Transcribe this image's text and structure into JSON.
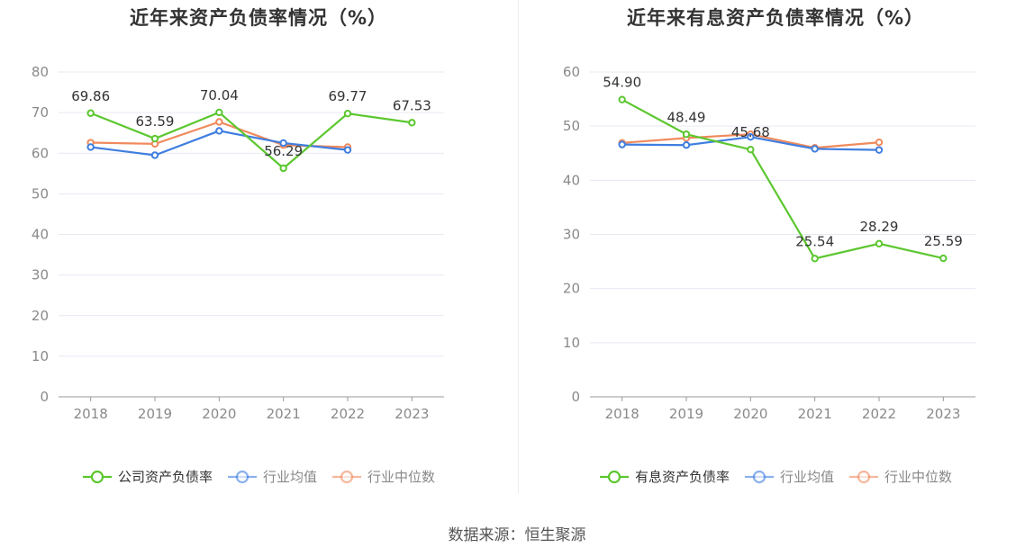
{
  "source": "数据来源：恒生聚源",
  "chart_data": [
    {
      "type": "line",
      "title": "近年来资产负债率情况（%）",
      "categories": [
        "2018",
        "2019",
        "2020",
        "2021",
        "2022",
        "2023"
      ],
      "ylim": [
        0,
        80
      ],
      "yticks": [
        0,
        10,
        20,
        30,
        40,
        50,
        60,
        70,
        80
      ],
      "grid": true,
      "legend_position": "bottom",
      "series": [
        {
          "name": "公司资产负债率",
          "color": "#5cc72f",
          "values": [
            69.86,
            63.59,
            70.04,
            56.29,
            69.77,
            67.53
          ],
          "show_labels": true
        },
        {
          "name": "行业均值",
          "color": "#3f7ee0",
          "values": [
            61.5,
            59.5,
            65.5,
            62.5,
            60.8,
            null
          ],
          "show_labels": false
        },
        {
          "name": "行业中位数",
          "color": "#f08a5d",
          "values": [
            62.6,
            62.3,
            67.7,
            62.0,
            61.5,
            null
          ],
          "show_labels": false
        }
      ]
    },
    {
      "type": "line",
      "title": "近年来有息资产负债率情况（%）",
      "categories": [
        "2018",
        "2019",
        "2020",
        "2021",
        "2022",
        "2023"
      ],
      "ylim": [
        0,
        60
      ],
      "yticks": [
        0,
        10,
        20,
        30,
        40,
        50,
        60
      ],
      "grid": true,
      "legend_position": "bottom",
      "series": [
        {
          "name": "有息资产负债率",
          "color": "#5cc72f",
          "values": [
            54.9,
            48.49,
            45.68,
            25.54,
            28.29,
            25.59
          ],
          "show_labels": true
        },
        {
          "name": "行业均值",
          "color": "#3f7ee0",
          "values": [
            46.6,
            46.5,
            48.0,
            45.8,
            45.6,
            null
          ],
          "show_labels": false
        },
        {
          "name": "行业中位数",
          "color": "#f08a5d",
          "values": [
            46.9,
            47.8,
            48.5,
            46.0,
            47.0,
            null
          ],
          "show_labels": false
        }
      ]
    }
  ]
}
